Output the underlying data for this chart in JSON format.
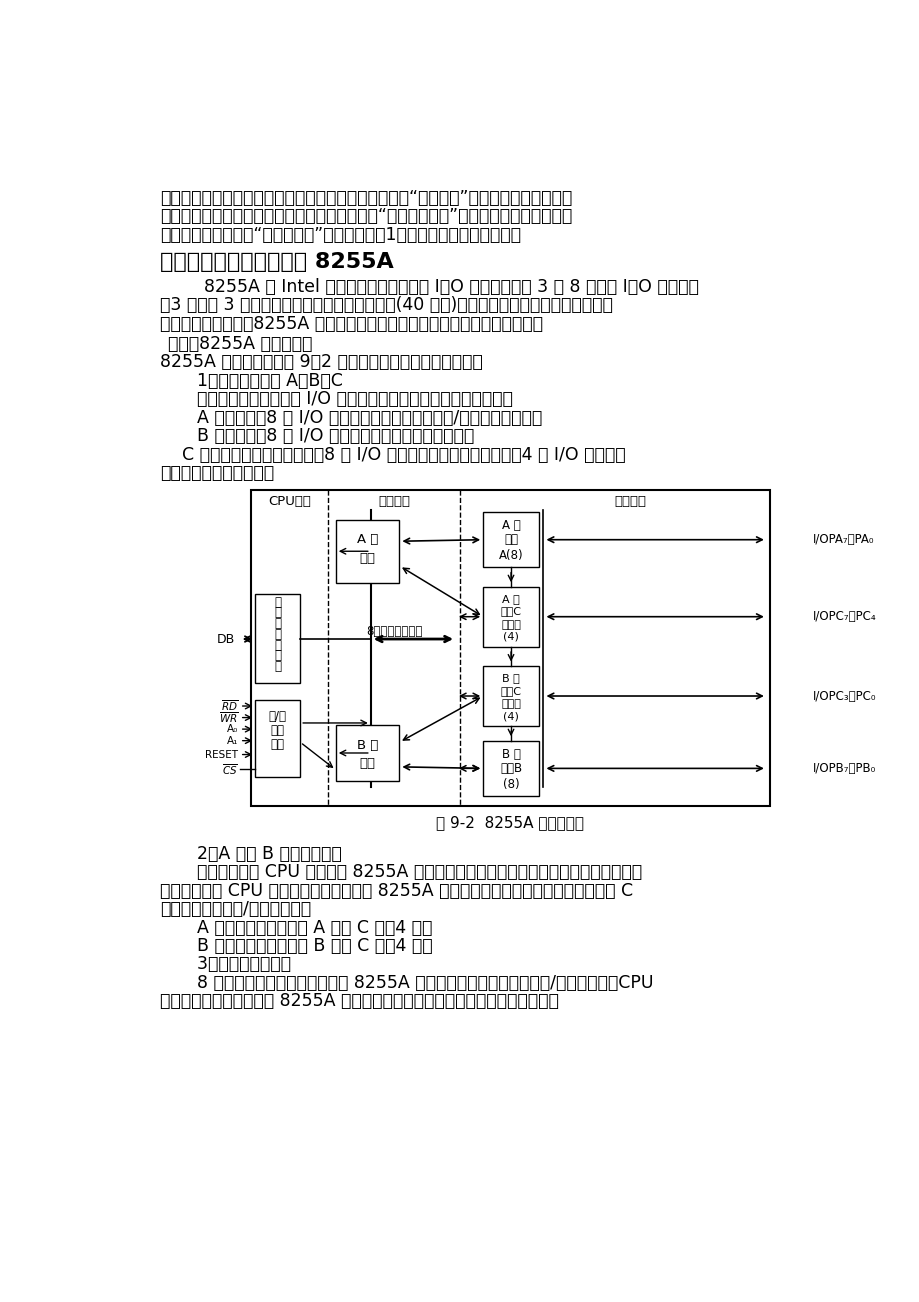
{
  "page_bg": "#ffffff",
  "text_color": "#000000",
  "top_paragraphs": [
    "位，并且将数据送往外设，同时，接口往外设发送一个“启动信号”来启动外设接收数据。",
    "外设被启动后，开始接收数据，并往接口发一个“数据输出回答”信号。接口收到此信号，",
    "便将状态寄存器中的“输出准备好”状态位重新置1，以便则输出下一个数据。"
  ],
  "section_title": "三、可编程并行接口芯片 8255A",
  "para1_indent": "        8255A 是 Intel 公司生产的可编程并行 I／O 接口芯片，有 3 个 8 位并行 I／O 接口，具",
  "para1_line2": "有3 个通道 3 种工作方式的可编程并行接口芯片(40 引脚)。其各接口功能可由软件选择，使",
  "para1_line3": "用灵活、通用性强。8255A 可作为单片机与多种外设连接时的中间接口电路。",
  "sub1": "（一）8255A 的内部结构",
  "sub1_line1": "8255A 的内部结构如图 9－2 所示，主要包括以下几个部分：",
  "list1": "    1．三个数据端口 A，B，C",
  "list1_desc": "    这三个端口均可看作是 I/O 口，但它们的结构和功能也稍有不同。",
  "portA": "    A 口：独立的8 位 I/O 口，它的内部有对数据输入/输出的锁存功能。",
  "portB": "    B 口：独立的8 位 I/O 口，仅对输出数据的锁存功能。",
  "portC1": "    C 口：可以看作是一个独立的8 位 I/O 口；也可以看作是两个独立的4 位 I/O 口。也是",
  "portC2": "仅对输出数据进行锁存。",
  "fig_caption": "图 9-2  8255A 的编程结构",
  "section2_title": "    2．A 组和 B 组的控制电路",
  "section2_p1": "    这是两组根据 CPU 命令控制 8255A 工作方式的电路，这些控制电路内部设有控制寄存",
  "section2_p2": "器，可以根据 CPU 送来的编程命令来控制 8255A 的工作方式，也可以根据编程命令来对 C",
  "section2_p3": "口的指定位进行置/复位的操作。",
  "section2_a": "    A 组控制电路用来控制 A 口及 C 口的4 位；",
  "section2_b": "    B 组控制电路用来控制 B 口及 C 口的4 位。",
  "section3_title": "    3．数据总线缓冲器",
  "section3_p1": "    8 位的双向的三态缓冲器。作为 8255A 与系统总线连接的界面，输入/输出的数据，CPU",
  "section3_p2": "的编程命令以及外设通过 8255A 传送的工作状态等信息，都是通过它来传输的。"
}
